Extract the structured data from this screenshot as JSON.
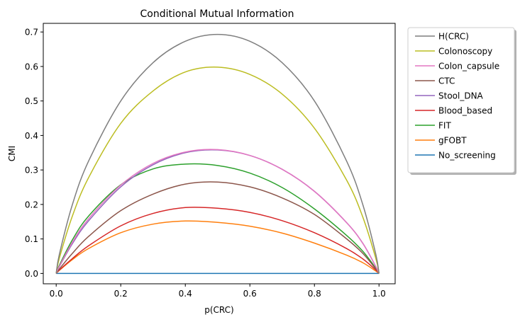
{
  "chart_data": {
    "type": "line",
    "title": "Conditional Mutual Information",
    "xlabel": "p(CRC)",
    "ylabel": "CMI",
    "xlim": [
      -0.04,
      1.05
    ],
    "ylim": [
      -0.03,
      0.725
    ],
    "xticks": [
      0.0,
      0.2,
      0.4,
      0.6,
      0.8,
      1.0
    ],
    "xtick_labels": [
      "0.0",
      "0.2",
      "0.4",
      "0.6",
      "0.8",
      "1.0"
    ],
    "yticks": [
      0.0,
      0.1,
      0.2,
      0.3,
      0.4,
      0.5,
      0.6,
      0.7
    ],
    "ytick_labels": [
      "0.0",
      "0.1",
      "0.2",
      "0.3",
      "0.4",
      "0.5",
      "0.6",
      "0.7"
    ],
    "grid": false,
    "legend_position": "outside-top-right",
    "x": [
      0.0,
      0.01,
      0.05,
      0.1,
      0.2,
      0.3,
      0.4,
      0.5,
      0.6,
      0.7,
      0.8,
      0.9,
      0.95,
      0.99,
      1.0
    ],
    "series": [
      {
        "name": "H(CRC)",
        "color": "#7f7f7f",
        "values": [
          0.0,
          0.056,
          0.199,
          0.325,
          0.5,
          0.611,
          0.673,
          0.693,
          0.673,
          0.611,
          0.5,
          0.325,
          0.199,
          0.056,
          0.0
        ]
      },
      {
        "name": "Colonoscopy",
        "color": "#bcbd22",
        "values": [
          0.0,
          0.045,
          0.166,
          0.277,
          0.435,
          0.529,
          0.584,
          0.598,
          0.577,
          0.52,
          0.421,
          0.27,
          0.163,
          0.044,
          0.0
        ]
      },
      {
        "name": "Colon_capsule",
        "color": "#e377c2",
        "values": [
          0.0,
          0.021,
          0.09,
          0.158,
          0.256,
          0.319,
          0.352,
          0.359,
          0.342,
          0.302,
          0.238,
          0.147,
          0.087,
          0.02,
          0.0
        ]
      },
      {
        "name": "CTC",
        "color": "#8c564b",
        "values": [
          0.0,
          0.013,
          0.058,
          0.107,
          0.182,
          0.23,
          0.259,
          0.265,
          0.251,
          0.219,
          0.171,
          0.1,
          0.058,
          0.013,
          0.0
        ]
      },
      {
        "name": "Stool_DNA",
        "color": "#9467bd",
        "values": [
          0.0,
          0.02,
          0.086,
          0.152,
          0.251,
          0.315,
          0.35,
          0.358,
          0.342,
          0.302,
          0.238,
          0.147,
          0.087,
          0.02,
          0.0
        ]
      },
      {
        "name": "Blood_based",
        "color": "#d62728",
        "values": [
          0.0,
          0.01,
          0.043,
          0.08,
          0.138,
          0.174,
          0.191,
          0.189,
          0.177,
          0.153,
          0.118,
          0.072,
          0.042,
          0.01,
          0.0
        ]
      },
      {
        "name": "FIT",
        "color": "#2ca02c",
        "values": [
          0.0,
          0.024,
          0.097,
          0.166,
          0.257,
          0.303,
          0.317,
          0.313,
          0.291,
          0.249,
          0.187,
          0.11,
          0.064,
          0.015,
          0.0
        ]
      },
      {
        "name": "gFOBT",
        "color": "#ff7f0e",
        "values": [
          0.0,
          0.009,
          0.04,
          0.072,
          0.118,
          0.143,
          0.152,
          0.148,
          0.137,
          0.117,
          0.088,
          0.053,
          0.031,
          0.007,
          0.0
        ]
      },
      {
        "name": "No_screening",
        "color": "#1f77b4",
        "values": [
          0.0,
          0.0,
          0.0,
          0.0,
          0.0,
          0.0,
          0.0,
          0.0,
          0.0,
          0.0,
          0.0,
          0.0,
          0.0,
          0.0,
          0.0
        ]
      }
    ]
  }
}
